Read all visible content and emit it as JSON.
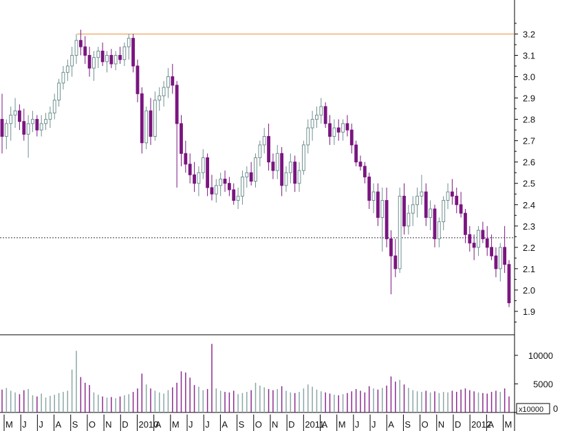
{
  "chart_data": {
    "type": "candlestick",
    "price_axis": {
      "ticks": [
        "1.9",
        "2.0",
        "2.1",
        "2.2",
        "2.3",
        "2.4",
        "2.5",
        "2.6",
        "2.7",
        "2.8",
        "2.9",
        "3.0",
        "3.1",
        "3.2"
      ],
      "range": [
        1.8,
        3.34
      ]
    },
    "volume_axis": {
      "ticks": [
        "0",
        "5000",
        "10000"
      ],
      "unit_label": "x10000",
      "range": [
        0,
        13000
      ]
    },
    "month_labels": [
      "M",
      "J",
      "J",
      "A",
      "S",
      "O",
      "N",
      "D",
      "2010",
      "A",
      "M",
      "J",
      "J",
      "A",
      "S",
      "O",
      "N",
      "D",
      "2011",
      "A",
      "M",
      "J",
      "J",
      "A",
      "S",
      "O",
      "N",
      "D",
      "2012",
      "A",
      "M"
    ],
    "reference_lines": [
      {
        "value": 3.2,
        "style": "solid",
        "color": "#e8913a"
      },
      {
        "value": 2.245,
        "style": "dashed",
        "color": "#333333"
      }
    ],
    "colors": {
      "up": "#6e8f8e",
      "down": "#7a1580",
      "volume_up": "#8aa6a5",
      "volume_down": "#8a2a8e"
    },
    "candles": [
      [
        2.8,
        2.92,
        2.64,
        2.72,
        4000
      ],
      [
        2.72,
        2.8,
        2.66,
        2.78,
        4300
      ],
      [
        2.78,
        2.86,
        2.7,
        2.82,
        3800
      ],
      [
        2.82,
        2.9,
        2.76,
        2.84,
        3500
      ],
      [
        2.84,
        2.87,
        2.75,
        2.79,
        3200
      ],
      [
        2.79,
        2.85,
        2.7,
        2.73,
        3900
      ],
      [
        2.73,
        2.82,
        2.62,
        2.78,
        4100
      ],
      [
        2.78,
        2.84,
        2.74,
        2.8,
        3000
      ],
      [
        2.8,
        2.82,
        2.72,
        2.75,
        2800
      ],
      [
        2.75,
        2.82,
        2.72,
        2.78,
        3300
      ],
      [
        2.78,
        2.83,
        2.75,
        2.8,
        2600
      ],
      [
        2.8,
        2.86,
        2.76,
        2.83,
        2900
      ],
      [
        2.83,
        2.92,
        2.8,
        2.89,
        3100
      ],
      [
        2.89,
        2.99,
        2.86,
        2.97,
        3400
      ],
      [
        2.97,
        3.05,
        2.94,
        3.02,
        3600
      ],
      [
        3.02,
        3.08,
        2.98,
        3.05,
        3800
      ],
      [
        3.05,
        3.14,
        3.0,
        3.1,
        7500
      ],
      [
        3.1,
        3.2,
        3.06,
        3.17,
        10800
      ],
      [
        3.17,
        3.22,
        3.1,
        3.14,
        6200
      ],
      [
        3.14,
        3.19,
        3.06,
        3.1,
        5200
      ],
      [
        3.1,
        3.14,
        3.0,
        3.04,
        4800
      ],
      [
        3.04,
        3.12,
        2.98,
        3.09,
        3500
      ],
      [
        3.09,
        3.14,
        3.04,
        3.12,
        3100
      ],
      [
        3.12,
        3.16,
        3.05,
        3.07,
        2800
      ],
      [
        3.07,
        3.12,
        3.02,
        3.1,
        2600
      ],
      [
        3.1,
        3.13,
        3.04,
        3.06,
        2700
      ],
      [
        3.06,
        3.12,
        3.03,
        3.1,
        2500
      ],
      [
        3.1,
        3.14,
        3.06,
        3.08,
        2800
      ],
      [
        3.08,
        3.16,
        3.05,
        3.14,
        3000
      ],
      [
        3.14,
        3.2,
        3.08,
        3.18,
        3200
      ],
      [
        3.18,
        3.2,
        3.02,
        3.05,
        3600
      ],
      [
        3.05,
        3.08,
        2.88,
        2.92,
        4200
      ],
      [
        2.92,
        2.95,
        2.64,
        2.69,
        6800
      ],
      [
        2.69,
        2.86,
        2.66,
        2.84,
        4900
      ],
      [
        2.84,
        2.9,
        2.68,
        2.72,
        4200
      ],
      [
        2.72,
        2.93,
        2.7,
        2.89,
        3800
      ],
      [
        2.89,
        2.95,
        2.84,
        2.91,
        3500
      ],
      [
        2.91,
        2.98,
        2.86,
        2.95,
        3300
      ],
      [
        2.95,
        3.04,
        2.9,
        3.0,
        3900
      ],
      [
        3.0,
        3.06,
        2.92,
        2.96,
        4400
      ],
      [
        2.96,
        2.98,
        2.48,
        2.78,
        5200
      ],
      [
        2.78,
        2.82,
        2.58,
        2.64,
        7200
      ],
      [
        2.64,
        2.7,
        2.55,
        2.59,
        7000
      ],
      [
        2.59,
        2.64,
        2.5,
        2.54,
        6100
      ],
      [
        2.54,
        2.6,
        2.46,
        2.5,
        4800
      ],
      [
        2.5,
        2.58,
        2.44,
        2.55,
        4500
      ],
      [
        2.55,
        2.66,
        2.52,
        2.62,
        3900
      ],
      [
        2.62,
        2.64,
        2.44,
        2.48,
        4100
      ],
      [
        2.48,
        2.54,
        2.42,
        2.45,
        12000
      ],
      [
        2.45,
        2.52,
        2.41,
        2.49,
        4200
      ],
      [
        2.49,
        2.55,
        2.44,
        2.52,
        3800
      ],
      [
        2.52,
        2.56,
        2.46,
        2.5,
        3600
      ],
      [
        2.5,
        2.53,
        2.44,
        2.47,
        3500
      ],
      [
        2.47,
        2.5,
        2.4,
        2.42,
        3800
      ],
      [
        2.42,
        2.48,
        2.38,
        2.44,
        3200
      ],
      [
        2.44,
        2.56,
        2.4,
        2.53,
        3400
      ],
      [
        2.53,
        2.58,
        2.48,
        2.55,
        3600
      ],
      [
        2.55,
        2.6,
        2.49,
        2.51,
        3900
      ],
      [
        2.51,
        2.64,
        2.48,
        2.62,
        5200
      ],
      [
        2.62,
        2.7,
        2.58,
        2.68,
        4700
      ],
      [
        2.68,
        2.76,
        2.64,
        2.72,
        4400
      ],
      [
        2.72,
        2.78,
        2.56,
        2.6,
        4100
      ],
      [
        2.6,
        2.64,
        2.52,
        2.56,
        3900
      ],
      [
        2.56,
        2.68,
        2.52,
        2.64,
        4100
      ],
      [
        2.64,
        2.67,
        2.44,
        2.49,
        4600
      ],
      [
        2.49,
        2.58,
        2.46,
        2.55,
        3800
      ],
      [
        2.55,
        2.64,
        2.5,
        2.6,
        3500
      ],
      [
        2.6,
        2.63,
        2.46,
        2.5,
        3400
      ],
      [
        2.5,
        2.6,
        2.46,
        2.56,
        3600
      ],
      [
        2.56,
        2.7,
        2.54,
        2.68,
        4200
      ],
      [
        2.68,
        2.8,
        2.64,
        2.76,
        4900
      ],
      [
        2.76,
        2.84,
        2.7,
        2.8,
        4500
      ],
      [
        2.8,
        2.86,
        2.76,
        2.82,
        4000
      ],
      [
        2.82,
        2.9,
        2.78,
        2.86,
        3700
      ],
      [
        2.86,
        2.88,
        2.76,
        2.78,
        3500
      ],
      [
        2.78,
        2.82,
        2.68,
        2.72,
        3300
      ],
      [
        2.72,
        2.8,
        2.68,
        2.76,
        3100
      ],
      [
        2.76,
        2.8,
        2.7,
        2.74,
        3000
      ],
      [
        2.74,
        2.8,
        2.7,
        2.78,
        3200
      ],
      [
        2.78,
        2.82,
        2.72,
        2.75,
        3400
      ],
      [
        2.75,
        2.78,
        2.64,
        2.68,
        3700
      ],
      [
        2.68,
        2.7,
        2.58,
        2.6,
        4100
      ],
      [
        2.6,
        2.63,
        2.56,
        2.58,
        3800
      ],
      [
        2.58,
        2.6,
        2.5,
        2.53,
        3500
      ],
      [
        2.53,
        2.55,
        2.38,
        2.42,
        4600
      ],
      [
        2.42,
        2.5,
        2.36,
        2.46,
        4200
      ],
      [
        2.46,
        2.5,
        2.3,
        2.34,
        4000
      ],
      [
        2.34,
        2.48,
        2.18,
        2.42,
        4300
      ],
      [
        2.42,
        2.48,
        2.2,
        2.24,
        4700
      ],
      [
        2.24,
        2.28,
        1.98,
        2.16,
        6300
      ],
      [
        2.16,
        2.24,
        2.06,
        2.1,
        5400
      ],
      [
        2.1,
        2.48,
        2.08,
        2.44,
        5700
      ],
      [
        2.44,
        2.5,
        2.26,
        2.3,
        4900
      ],
      [
        2.3,
        2.4,
        2.26,
        2.36,
        4300
      ],
      [
        2.36,
        2.44,
        2.3,
        2.4,
        3900
      ],
      [
        2.4,
        2.48,
        2.34,
        2.44,
        3700
      ],
      [
        2.44,
        2.54,
        2.4,
        2.46,
        3600
      ],
      [
        2.46,
        2.5,
        2.3,
        2.34,
        3800
      ],
      [
        2.34,
        2.42,
        2.28,
        2.38,
        3500
      ],
      [
        2.38,
        2.4,
        2.2,
        2.24,
        3700
      ],
      [
        2.24,
        2.34,
        2.2,
        2.32,
        3400
      ],
      [
        2.32,
        2.44,
        2.28,
        2.42,
        3600
      ],
      [
        2.42,
        2.5,
        2.38,
        2.46,
        3500
      ],
      [
        2.46,
        2.52,
        2.4,
        2.44,
        3800
      ],
      [
        2.44,
        2.48,
        2.36,
        2.4,
        3600
      ],
      [
        2.4,
        2.46,
        2.34,
        2.36,
        4000
      ],
      [
        2.36,
        2.38,
        2.22,
        2.26,
        4200
      ],
      [
        2.26,
        2.3,
        2.18,
        2.22,
        3900
      ],
      [
        2.22,
        2.26,
        2.14,
        2.2,
        3700
      ],
      [
        2.2,
        2.3,
        2.16,
        2.28,
        3500
      ],
      [
        2.28,
        2.32,
        2.22,
        2.24,
        3400
      ],
      [
        2.24,
        2.3,
        2.16,
        2.2,
        3300
      ],
      [
        2.2,
        2.26,
        2.14,
        2.16,
        3600
      ],
      [
        2.16,
        2.2,
        2.06,
        2.1,
        3800
      ],
      [
        2.1,
        2.22,
        2.04,
        2.2,
        3600
      ],
      [
        2.2,
        2.3,
        2.08,
        2.12,
        4200
      ],
      [
        2.12,
        2.14,
        1.92,
        1.94,
        2800
      ]
    ]
  }
}
